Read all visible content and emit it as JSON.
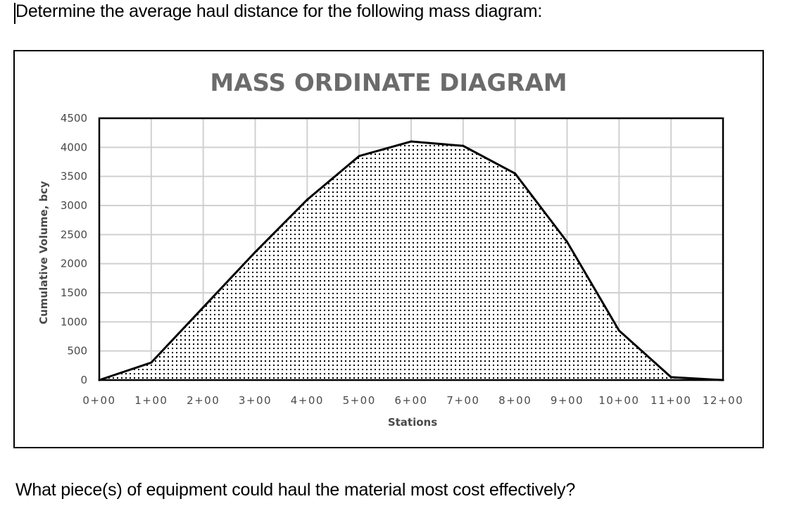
{
  "page": {
    "question_top": "Determine the average haul distance for the following mass diagram:",
    "question_bottom": "What piece(s) of equipment could haul the material most cost effectively?"
  },
  "colors": {
    "title": "#6b6b6b",
    "grid": "#d0d0d0",
    "line": "#000000",
    "tick_text": "#4a4a4a"
  },
  "chart_data": {
    "type": "area",
    "title": "MASS ORDINATE DIAGRAM",
    "xlabel": "Stations",
    "ylabel": "Cumulative Volume, bcy",
    "categories": [
      "0+00",
      "1+00",
      "2+00",
      "3+00",
      "4+00",
      "5+00",
      "6+00",
      "7+00",
      "8+00",
      "9+00",
      "10+00",
      "11+00",
      "12+00"
    ],
    "values": [
      0,
      300,
      1250,
      2200,
      3100,
      3850,
      4100,
      4025,
      3550,
      2375,
      850,
      50,
      0
    ],
    "ylim": [
      0,
      4500
    ],
    "yticks": [
      0,
      500,
      1000,
      1500,
      2000,
      2500,
      3000,
      3500,
      4000,
      4500
    ],
    "ytick_labels": [
      "0",
      "500",
      "1000",
      "1500",
      "2000",
      "2500",
      "3000",
      "3500",
      "4000",
      "4500"
    ],
    "grid": true,
    "fill_pattern": "dotted",
    "legend": "none"
  }
}
